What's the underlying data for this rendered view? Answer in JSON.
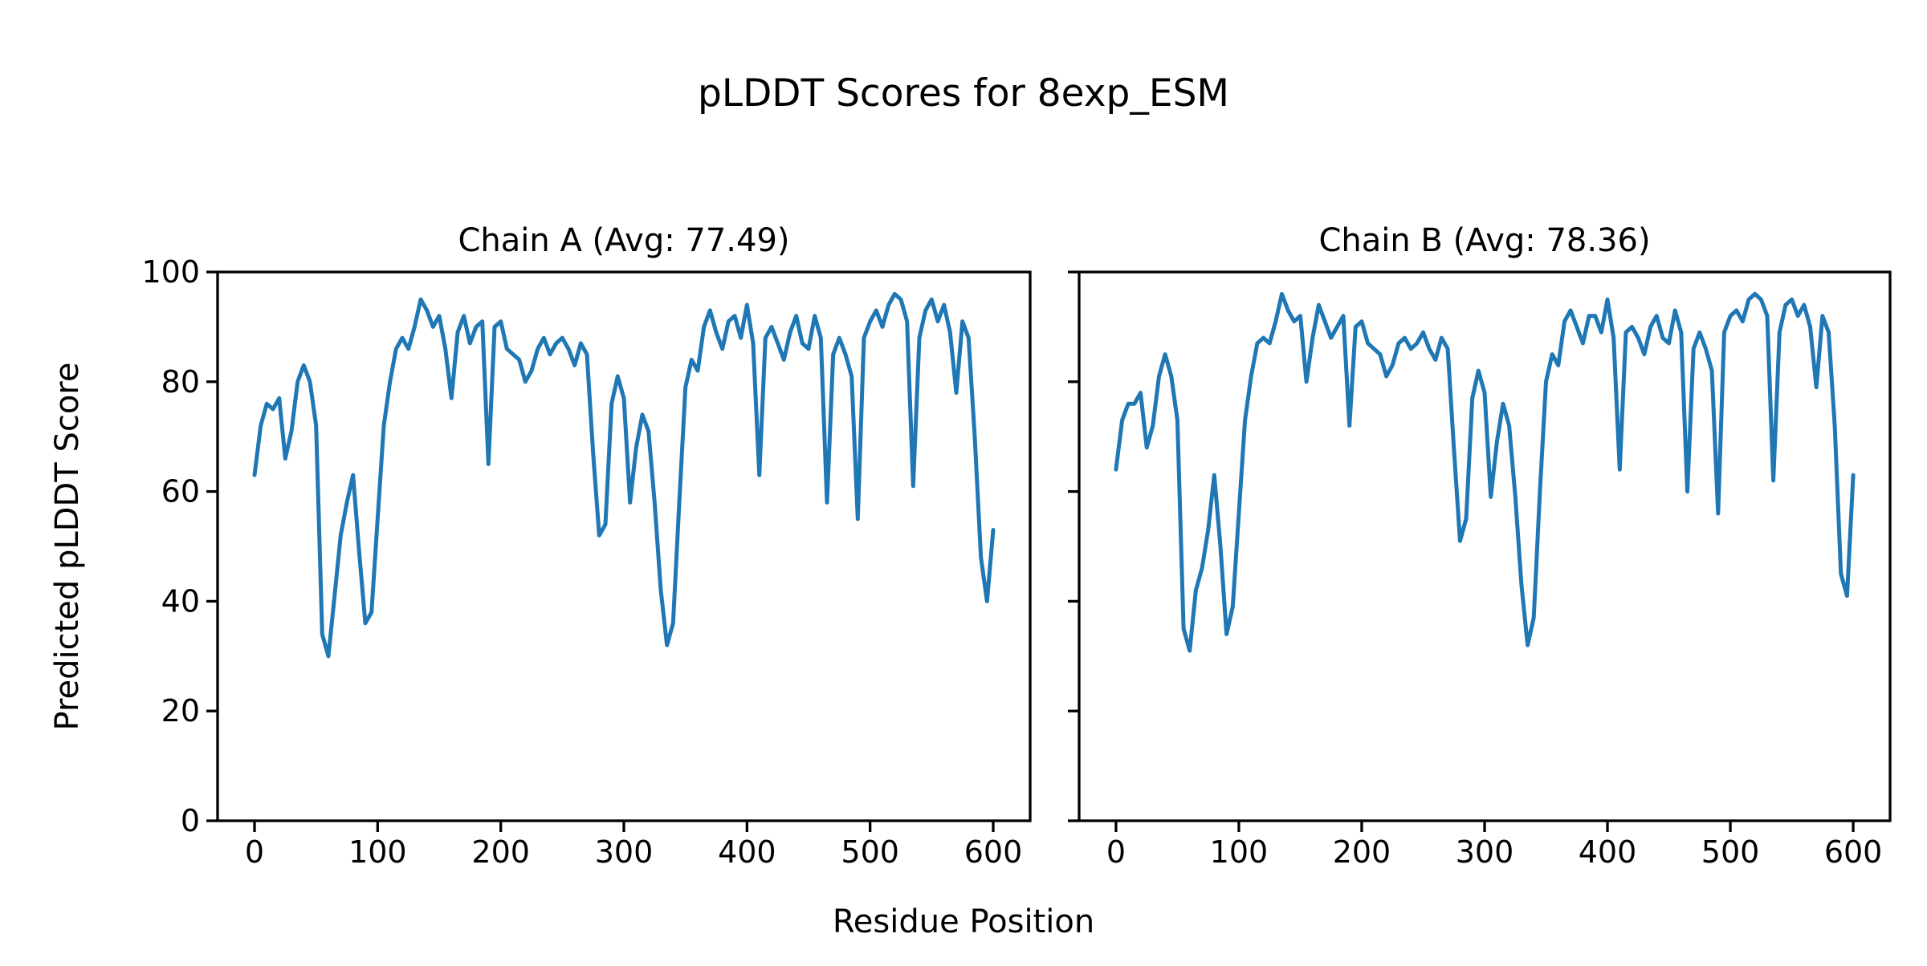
{
  "figure": {
    "title": "pLDDT Scores for 8exp_ESM",
    "xlabel": "Residue Position",
    "ylabel": "Predicted pLDDT Score",
    "background_color": "#ffffff",
    "text_color": "#000000"
  },
  "chart_data": {
    "type": "line",
    "line_color": "#1f77b4",
    "frame_color": "#000000",
    "grid": false,
    "legend": null,
    "xlim": [
      -30,
      630
    ],
    "ylim": [
      0,
      100
    ],
    "xticks": [
      0,
      100,
      200,
      300,
      400,
      500,
      600
    ],
    "yticks": [
      0,
      20,
      40,
      60,
      80,
      100
    ],
    "x_axis_label": "Residue Position",
    "y_axis_label": "Predicted pLDDT Score",
    "subplots": [
      {
        "title": "Chain A (Avg: 77.49)",
        "chain": "A",
        "avg": 77.49,
        "x_start": 0,
        "x_step": 5,
        "values": [
          63,
          72,
          76,
          75,
          77,
          66,
          71,
          80,
          83,
          80,
          72,
          34,
          30,
          41,
          52,
          58,
          63,
          49,
          36,
          38,
          55,
          72,
          80,
          86,
          88,
          86,
          90,
          95,
          93,
          90,
          92,
          86,
          77,
          89,
          92,
          87,
          90,
          91,
          65,
          90,
          91,
          86,
          85,
          84,
          80,
          82,
          86,
          88,
          85,
          87,
          88,
          86,
          83,
          87,
          85,
          67,
          52,
          54,
          76,
          81,
          77,
          58,
          68,
          74,
          71,
          58,
          42,
          32,
          36,
          58,
          79,
          84,
          82,
          90,
          93,
          89,
          86,
          91,
          92,
          88,
          94,
          87,
          63,
          88,
          90,
          87,
          84,
          89,
          92,
          87,
          86,
          92,
          88,
          58,
          85,
          88,
          85,
          81,
          55,
          88,
          91,
          93,
          90,
          94,
          96,
          95,
          91,
          61,
          88,
          93,
          95,
          91,
          94,
          89,
          78,
          91,
          88,
          70,
          48,
          40,
          53
        ]
      },
      {
        "title": "Chain B (Avg: 78.36)",
        "chain": "B",
        "avg": 78.36,
        "x_start": 0,
        "x_step": 5,
        "values": [
          64,
          73,
          76,
          76,
          78,
          68,
          72,
          81,
          85,
          81,
          73,
          35,
          31,
          42,
          46,
          53,
          63,
          50,
          34,
          39,
          56,
          73,
          81,
          87,
          88,
          87,
          91,
          96,
          93,
          91,
          92,
          80,
          88,
          94,
          91,
          88,
          90,
          92,
          72,
          90,
          91,
          87,
          86,
          85,
          81,
          83,
          87,
          88,
          86,
          87,
          89,
          86,
          84,
          88,
          86,
          68,
          51,
          55,
          77,
          82,
          78,
          59,
          69,
          76,
          72,
          59,
          43,
          32,
          37,
          60,
          80,
          85,
          83,
          91,
          93,
          90,
          87,
          92,
          92,
          89,
          95,
          88,
          64,
          89,
          90,
          88,
          85,
          90,
          92,
          88,
          87,
          93,
          89,
          60,
          86,
          89,
          86,
          82,
          56,
          89,
          92,
          93,
          91,
          95,
          96,
          95,
          92,
          62,
          89,
          94,
          95,
          92,
          94,
          90,
          79,
          92,
          89,
          72,
          45,
          41,
          63
        ]
      }
    ]
  }
}
